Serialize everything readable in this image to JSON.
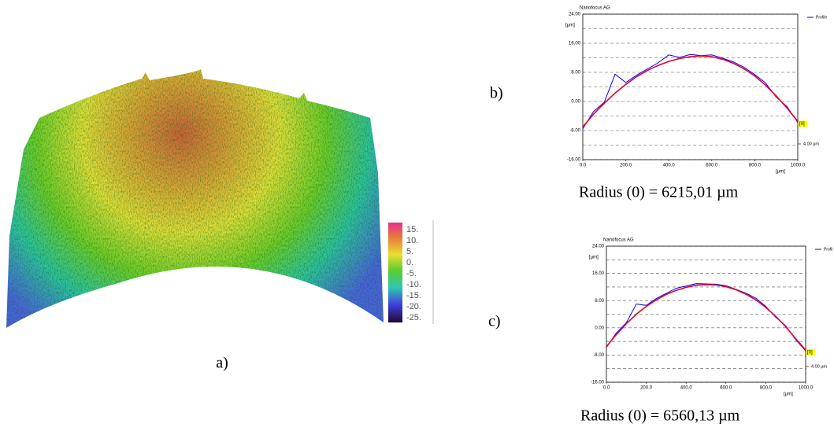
{
  "panel_a": {
    "label": "a)",
    "colorbar_ticks": [
      {
        "value": 15,
        "label": "15."
      },
      {
        "value": 10,
        "label": "10."
      },
      {
        "value": 5,
        "label": "5."
      },
      {
        "value": 0,
        "label": "0."
      },
      {
        "value": -5,
        "label": "-5."
      },
      {
        "value": -10,
        "label": "-10."
      },
      {
        "value": -15,
        "label": "-15."
      },
      {
        "value": -20,
        "label": "-20."
      },
      {
        "value": -25,
        "label": "-25."
      }
    ]
  },
  "chart_data": [
    {
      "type": "line",
      "panel_label": "b)",
      "title": "Nanofocus AG",
      "y_unit": "[µm]",
      "x_unit": "[µm]",
      "x": [
        0,
        50,
        100,
        150,
        200,
        250,
        300,
        350,
        400,
        450,
        500,
        550,
        600,
        650,
        700,
        750,
        800,
        850,
        900,
        950,
        1000
      ],
      "series": [
        {
          "name": "Profile",
          "color": "#0000ff",
          "legend": true,
          "values": [
            -7.5,
            -2.8,
            -0.2,
            7.5,
            5.2,
            7.2,
            8.9,
            10.6,
            12.8,
            12.1,
            12.9,
            12.6,
            12.8,
            11.9,
            10.9,
            9.4,
            7.4,
            5.1,
            1.2,
            -1.4,
            -5.8
          ]
        },
        {
          "name": "[0]",
          "color": "#e8002a",
          "legend": false,
          "values": [
            -7,
            -3.5,
            -0.5,
            2.3,
            4.7,
            6.8,
            8.5,
            9.9,
            11,
            11.8,
            12.3,
            12.5,
            12.3,
            11.6,
            10.5,
            9,
            7,
            4.5,
            1.5,
            -1.8,
            -5.5
          ]
        }
      ],
      "scale_label": "4.00 µm",
      "caption": "Radius (0) = 6215,01 µm",
      "xlim": [
        0,
        1000
      ],
      "ylim": [
        -16,
        24
      ],
      "xticks": [
        {
          "value": 0,
          "label": "0.0"
        },
        {
          "value": 200,
          "label": "200.0"
        },
        {
          "value": 400,
          "label": "400.0"
        },
        {
          "value": 600,
          "label": "600.0"
        },
        {
          "value": 800,
          "label": "800.0"
        },
        {
          "value": 1000,
          "label": "1000.0"
        }
      ],
      "yticks": [
        {
          "value": -16,
          "label": "-16.00"
        },
        {
          "value": -8,
          "label": "-8.00"
        },
        {
          "value": 0,
          "label": "0.00"
        },
        {
          "value": 8,
          "label": "8.00"
        },
        {
          "value": 16,
          "label": "16.00"
        },
        {
          "value": 24,
          "label": "24.00"
        }
      ],
      "grid": true,
      "legend": "upper right"
    },
    {
      "type": "line",
      "panel_label": "c)",
      "title": "Nanofocus AG",
      "y_unit": "[µm]",
      "x_unit": "[µm]",
      "x": [
        0,
        50,
        100,
        150,
        200,
        250,
        300,
        350,
        400,
        450,
        500,
        550,
        600,
        650,
        700,
        750,
        800,
        850,
        900,
        950,
        1000
      ],
      "series": [
        {
          "name": "Profil",
          "color": "#0000ff",
          "legend": true,
          "values": [
            -5.8,
            -1.5,
            1.5,
            7,
            6.6,
            8.6,
            10.1,
            11.6,
            12.3,
            13,
            12.9,
            12.8,
            12.4,
            11.3,
            10.2,
            8.7,
            6.3,
            3.1,
            0.6,
            -3.5,
            -6.8
          ]
        },
        {
          "name": "[0]",
          "color": "#e8002a",
          "legend": false,
          "values": [
            -5.5,
            -2,
            1.2,
            4,
            6.3,
            8.2,
            9.8,
            11,
            11.9,
            12.5,
            12.7,
            12.6,
            12.1,
            11.2,
            9.9,
            8.2,
            6,
            3.4,
            0.3,
            -3.2,
            -6.5
          ]
        }
      ],
      "scale_label": "4.00 µm",
      "caption": "Radius (0) = 6560,13 µm",
      "xlim": [
        0,
        1000
      ],
      "ylim": [
        -16,
        24
      ],
      "xticks": [
        {
          "value": 0,
          "label": "0.0"
        },
        {
          "value": 200,
          "label": "200.0"
        },
        {
          "value": 400,
          "label": "400.0"
        },
        {
          "value": 600,
          "label": "600.0"
        },
        {
          "value": 800,
          "label": "800.0"
        },
        {
          "value": 1000,
          "label": "1000.0"
        }
      ],
      "yticks": [
        {
          "value": -16,
          "label": "-16.00"
        },
        {
          "value": -8,
          "label": "-8.00"
        },
        {
          "value": 0,
          "label": "0.00"
        },
        {
          "value": 8,
          "label": "8.00"
        },
        {
          "value": 16,
          "label": "16.00"
        },
        {
          "value": 24,
          "label": "24.00"
        }
      ],
      "grid": true,
      "legend": "upper right"
    }
  ]
}
